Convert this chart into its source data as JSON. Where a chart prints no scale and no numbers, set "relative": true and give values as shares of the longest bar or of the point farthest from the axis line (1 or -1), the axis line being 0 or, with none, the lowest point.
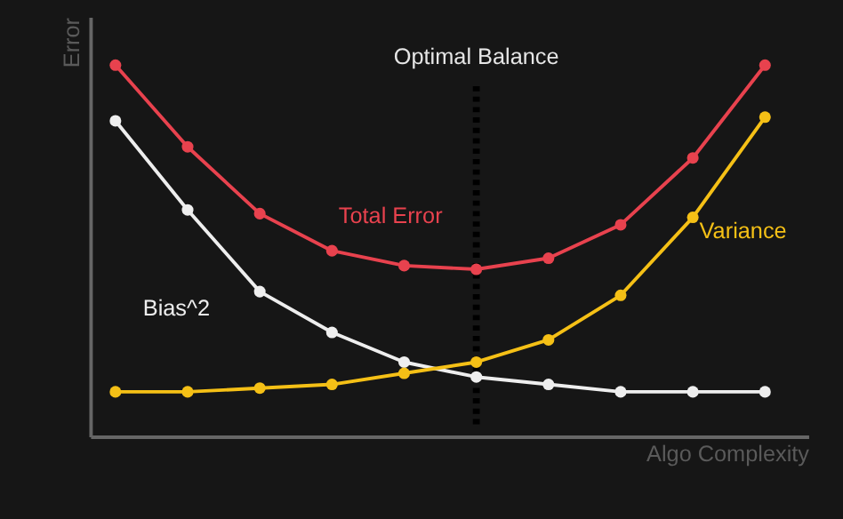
{
  "chart_data": {
    "type": "line",
    "relative": true,
    "xlabel": "Algo Complexity",
    "ylabel": "Error",
    "categories": [
      null,
      null,
      null,
      null,
      null,
      null,
      null,
      null,
      null,
      null
    ],
    "series": [
      {
        "name": "Total Error",
        "color": "#e8424e",
        "values": [
          1,
          0.78,
          0.6,
          0.5,
          0.46,
          0.45,
          0.48,
          0.57,
          0.75,
          1
        ]
      },
      {
        "name": "Bias^2",
        "color": "#eeeeee",
        "values": [
          0.85,
          0.61,
          0.39,
          0.28,
          0.2,
          0.16,
          0.14,
          0.12,
          0.12,
          0.12
        ]
      },
      {
        "name": "Variance",
        "color": "#f5c016",
        "values": [
          0.12,
          0.12,
          0.13,
          0.14,
          0.17,
          0.2,
          0.26,
          0.38,
          0.59,
          0.86
        ]
      }
    ],
    "annotations": [
      "Optimal Balance"
    ],
    "marker": "circle",
    "line_style": "solid"
  }
}
